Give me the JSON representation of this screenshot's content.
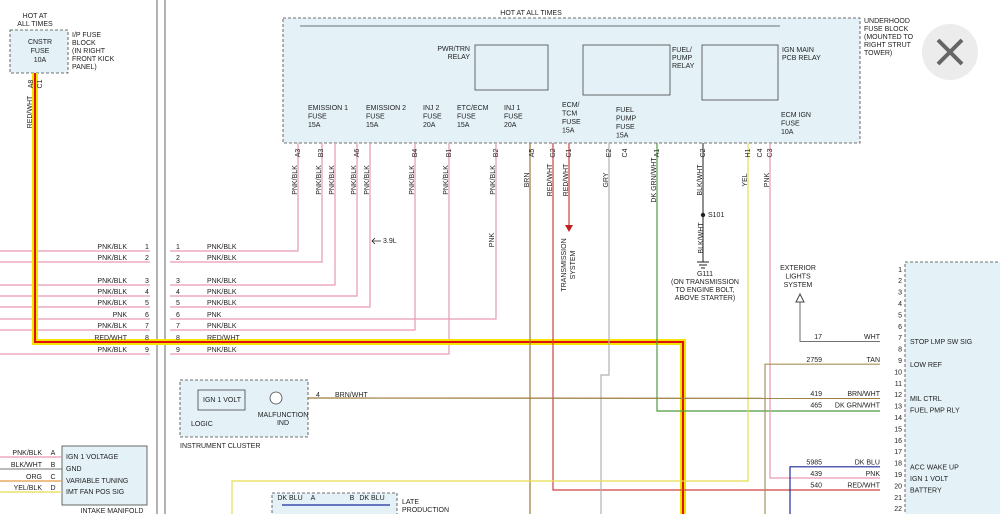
{
  "left_fuse": {
    "hot": [
      "HOT AT",
      "ALL TIMES"
    ],
    "fuse": [
      "CNSTR",
      "FUSE",
      "10A"
    ],
    "block": [
      "I/P FUSE",
      "BLOCK",
      "(IN RIGHT",
      "FRONT KICK",
      "PANEL)"
    ],
    "pins": [
      "A8",
      "C1"
    ],
    "wire": "RED/WHT"
  },
  "underhood": {
    "hot": "HOT AT ALL TIMES",
    "block": [
      "UNDERHOOD",
      "FUSE BLOCK",
      "(MOUNTED TO",
      "RIGHT STRUT",
      "TOWER)"
    ],
    "relays": [
      [
        "PWR/TRN",
        "RELAY"
      ],
      [
        "FUEL/",
        "PUMP",
        "RELAY"
      ],
      [
        "IGN MAIN",
        "PCB RELAY"
      ]
    ],
    "fuses": [
      [
        "EMISSION 1",
        "FUSE",
        "15A"
      ],
      [
        "EMISSION 2",
        "FUSE",
        "15A"
      ],
      [
        "INJ 2",
        "FUSE",
        "20A"
      ],
      [
        "ETC/ECM",
        "FUSE",
        "15A"
      ],
      [
        "INJ 1",
        "FUSE",
        "20A"
      ],
      [
        "ECM/",
        "TCM",
        "FUSE",
        "15A"
      ],
      [
        "FUEL",
        "PUMP",
        "FUSE",
        "15A"
      ],
      [
        "ECM IGN",
        "FUSE",
        "10A"
      ]
    ],
    "pins": [
      "A3",
      "B3",
      "A6",
      "B4",
      "B1",
      "B2",
      "A5",
      "G2",
      "C1",
      "E2",
      "C4",
      "A1",
      "C2",
      "H1",
      "C4",
      "C3"
    ],
    "wires": [
      "PNK/BLK",
      "PNK/BLK",
      "PNK/BLK",
      "PNK/BLK",
      "PNK/BLK",
      "PNK/BLK",
      "PNK/BLK",
      "PNK/BLK",
      "BRN",
      "RED/WHT",
      "RED/WHT",
      "GRY",
      "DK GRN/WHT",
      "BLK/WHT",
      "YEL",
      "PNK"
    ]
  },
  "middle": {
    "engine": "3.9L",
    "pnk": "PNK",
    "transmission": [
      "TRANSMISSION",
      "SYSTEM"
    ],
    "splice": "S101",
    "ground_wire": "BLK/WHT",
    "ground": [
      "G111",
      "(ON TRANSMISSION",
      "TO ENGINE BOLT,",
      "ABOVE STARTER)"
    ],
    "exterior": [
      "EXTERIOR",
      "LIGHTS",
      "SYSTEM"
    ]
  },
  "connector": {
    "left": [
      {
        "wire": "PNK/BLK",
        "pin": "1"
      },
      {
        "wire": "PNK/BLK",
        "pin": "2"
      },
      {
        "wire": "PNK/BLK",
        "pin": "3"
      },
      {
        "wire": "PNK/BLK",
        "pin": "4"
      },
      {
        "wire": "PNK/BLK",
        "pin": "5"
      },
      {
        "wire": "PNK",
        "pin": "6"
      },
      {
        "wire": "PNK/BLK",
        "pin": "7"
      },
      {
        "wire": "RED/WHT",
        "pin": "8"
      },
      {
        "wire": "PNK/BLK",
        "pin": "9"
      }
    ],
    "right": [
      {
        "wire": "PNK/BLK",
        "pin": "1"
      },
      {
        "wire": "PNK/BLK",
        "pin": "2"
      },
      {
        "wire": "PNK/BLK",
        "pin": "3"
      },
      {
        "wire": "PNK/BLK",
        "pin": "4"
      },
      {
        "wire": "PNK/BLK",
        "pin": "5"
      },
      {
        "wire": "PNK",
        "pin": "6"
      },
      {
        "wire": "PNK/BLK",
        "pin": "7"
      },
      {
        "wire": "RED/WHT",
        "pin": "8"
      },
      {
        "wire": "PNK/BLK",
        "pin": "9"
      }
    ]
  },
  "cluster": {
    "ign": "IGN 1 VOLT",
    "ind": [
      "MALFUNCTION",
      "IND"
    ],
    "logic": "LOGIC",
    "name": "INSTRUMENT CLUSTER",
    "pin": "4",
    "wire": "BRN/WHT"
  },
  "intake": {
    "pins": [
      {
        "wire": "PNK/BLK",
        "pin": "A",
        "signal": "IGN 1 VOLTAGE"
      },
      {
        "wire": "BLK/WHT",
        "pin": "B",
        "signal": "GND"
      },
      {
        "wire": "ORG",
        "pin": "C",
        "signal": "VARIABLE TUNING"
      },
      {
        "wire": "YEL/BLK",
        "pin": "D",
        "signal": "IMT FAN POS SIG"
      }
    ],
    "name": "INTAKE MANIFOLD"
  },
  "late": {
    "wire_a": "DK BLU",
    "pin_a": "A",
    "pin_b": "B",
    "wire_b": "DK BLU",
    "name": [
      "LATE",
      "PRODUCTION"
    ]
  },
  "ecm": {
    "pins": [
      "1",
      "2",
      "3",
      "4",
      "5",
      "6",
      "7",
      "8",
      "9",
      "10",
      "11",
      "12",
      "13",
      "14",
      "15",
      "16",
      "17",
      "18",
      "19",
      "20",
      "21",
      "22"
    ],
    "rows": [
      {
        "circuit": "17",
        "wire": "WHT",
        "signal": "STOP LMP SW SIG"
      },
      {
        "circuit": "2759",
        "wire": "TAN",
        "signal": "LOW REF"
      },
      {
        "circuit": "419",
        "wire": "BRN/WHT",
        "signal": "MIL CTRL"
      },
      {
        "circuit": "465",
        "wire": "DK GRN/WHT",
        "signal": "FUEL PMP RLY"
      },
      {
        "circuit": "5985",
        "wire": "DK BLU",
        "signal": "ACC WAKE UP"
      },
      {
        "circuit": "439",
        "wire": "PNK",
        "signal": "IGN 1 VOLT"
      },
      {
        "circuit": "540",
        "wire": "RED/WHT",
        "signal": "BATTERY"
      }
    ]
  }
}
